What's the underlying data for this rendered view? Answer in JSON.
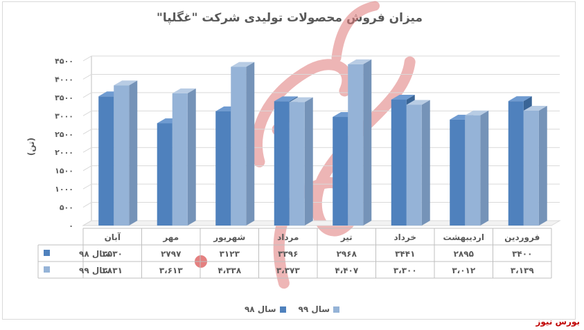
{
  "chart_data": {
    "type": "bar",
    "title": "میزان فروش محصولات تولیدی شرکت \"غگلپا\"",
    "ylabel": "(تن)",
    "ylim": [
      0,
      4500
    ],
    "y_ticks": [
      "۰",
      "۵۰۰",
      "۱۰۰۰",
      "۱۵۰۰",
      "۲۰۰۰",
      "۲۵۰۰",
      "۳۰۰۰",
      "۳۵۰۰",
      "۴۰۰۰",
      "۴۵۰۰"
    ],
    "categories": [
      "فروردین",
      "اردیبهشت",
      "خرداد",
      "تیر",
      "مرداد",
      "شهریور",
      "مهر",
      "آبان"
    ],
    "series": [
      {
        "name": "سال ۹۸",
        "color": "#4f81bd",
        "values": [
          3400,
          2895,
          3441,
          2968,
          3396,
          3123,
          2797,
          3530
        ],
        "labels": [
          "۳۴۰۰",
          "۲۸۹۵",
          "۳۴۴۱",
          "۲۹۶۸",
          "۳۳۹۶",
          "۳۱۲۳",
          "۲۷۹۷",
          "۳۵۳۰"
        ]
      },
      {
        "name": "سال ۹۹",
        "color": "#95b3d7",
        "values": [
          3139,
          3012,
          3300,
          4407,
          3373,
          4338,
          3613,
          3831
        ],
        "labels": [
          "۳،۱۳۹",
          "۳،۰۱۲",
          "۳،۳۰۰",
          "۴،۴۰۷",
          "۳،۳۷۳",
          "۴،۳۳۸",
          "۳،۶۱۳",
          "۳۸۳۱"
        ]
      }
    ],
    "legend_position": "bottom",
    "grid": true,
    "data_table": true
  },
  "watermark": "بورس نیوز",
  "source": "بورس نیوز"
}
